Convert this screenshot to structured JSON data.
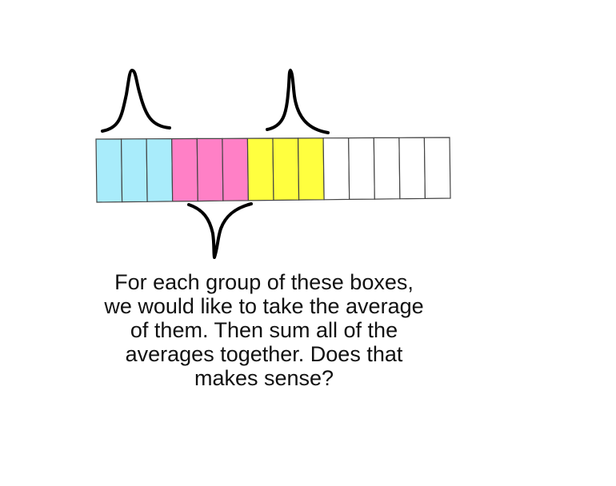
{
  "diagram": {
    "groups": [
      {
        "name": "group-1",
        "color": "#a9ecfb",
        "box_count": 3
      },
      {
        "name": "group-2",
        "color": "#ff80c6",
        "box_count": 3
      },
      {
        "name": "group-3",
        "color": "#ffff3f",
        "box_count": 3
      },
      {
        "name": "remaining",
        "color": "#ffffff",
        "box_count": 5
      }
    ],
    "stroke_color": "#444444",
    "brace_color": "#000000"
  },
  "caption": {
    "lines": [
      "For each group of these boxes,",
      "we would like to take the average",
      "of them. Then sum all of the",
      "averages together. Does that",
      "makes sense?"
    ]
  }
}
